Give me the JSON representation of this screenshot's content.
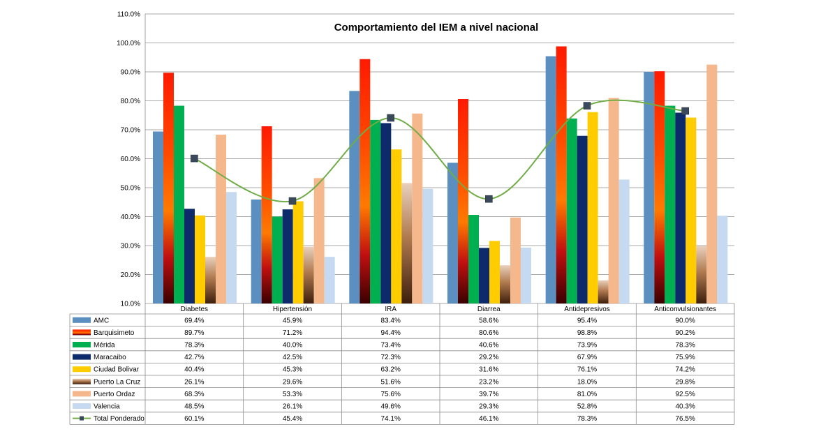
{
  "chart_data": {
    "type": "bar",
    "title": "Comportamiento  del IEM a nivel nacional",
    "categories": [
      "Diabetes",
      "Hipertensión",
      "IRA",
      "Diarrea",
      "Antidepresivos",
      "Anticonvulsionantes"
    ],
    "ylim": [
      10,
      110
    ],
    "ytick_step": 10,
    "ytick_labels": [
      "10.0%",
      "20.0%",
      "30.0%",
      "40.0%",
      "50.0%",
      "60.0%",
      "70.0%",
      "80.0%",
      "90.0%",
      "100.0%",
      "110.0%"
    ],
    "grid": true,
    "legend": "data table below the plot",
    "series": [
      {
        "name": "AMC",
        "color": "#5b8fc0",
        "values": [
          69.4,
          45.9,
          83.4,
          58.6,
          95.4,
          90.0
        ],
        "labels": [
          "69.4%",
          "45.9%",
          "83.4%",
          "58.6%",
          "95.4%",
          "90.0%"
        ]
      },
      {
        "name": "Barquisimeto",
        "color": "#ff2200",
        "gradient": "fire",
        "values": [
          89.7,
          71.2,
          94.4,
          80.6,
          98.8,
          90.2
        ],
        "labels": [
          "89.7%",
          "71.2%",
          "94.4%",
          "80.6%",
          "98.8%",
          "90.2%"
        ]
      },
      {
        "name": "Mérida",
        "color": "#00b050",
        "values": [
          78.3,
          40.0,
          73.4,
          40.6,
          73.9,
          78.3
        ],
        "labels": [
          "78.3%",
          "40.0%",
          "73.4%",
          "40.6%",
          "73.9%",
          "78.3%"
        ]
      },
      {
        "name": "Maracaibo",
        "color": "#0d2a6b",
        "values": [
          42.7,
          42.5,
          72.3,
          29.2,
          67.9,
          75.9
        ],
        "labels": [
          "42.7%",
          "42.5%",
          "72.3%",
          "29.2%",
          "67.9%",
          "75.9%"
        ]
      },
      {
        "name": "Ciudad Bolivar",
        "color": "#ffcc00",
        "values": [
          40.4,
          45.3,
          63.2,
          31.6,
          76.1,
          74.2
        ],
        "labels": [
          "40.4%",
          "45.3%",
          "63.2%",
          "31.6%",
          "76.1%",
          "74.2%"
        ]
      },
      {
        "name": "Puerto La Cruz",
        "color": "#b07a4f",
        "gradient": "bronze",
        "values": [
          26.1,
          29.6,
          51.6,
          23.2,
          18.0,
          29.8
        ],
        "labels": [
          "26.1%",
          "29.6%",
          "51.6%",
          "23.2%",
          "18.0%",
          "29.8%"
        ]
      },
      {
        "name": "Puerto Ordaz",
        "color": "#f5b78c",
        "values": [
          68.3,
          53.3,
          75.6,
          39.7,
          81.0,
          92.5
        ],
        "labels": [
          "68.3%",
          "53.3%",
          "75.6%",
          "39.7%",
          "81.0%",
          "92.5%"
        ]
      },
      {
        "name": "Valencia",
        "color": "#c5d9f1",
        "values": [
          48.5,
          26.1,
          49.6,
          29.3,
          52.8,
          40.3
        ],
        "labels": [
          "48.5%",
          "26.1%",
          "49.6%",
          "29.3%",
          "52.8%",
          "40.3%"
        ]
      },
      {
        "name": "Total Ponderado",
        "type": "line",
        "color": "#70ad47",
        "marker_color": "#3a4a5c",
        "values": [
          60.1,
          45.4,
          74.1,
          46.1,
          78.3,
          76.5
        ],
        "labels": [
          "60.1%",
          "45.4%",
          "74.1%",
          "46.1%",
          "78.3%",
          "76.5%"
        ]
      }
    ]
  }
}
